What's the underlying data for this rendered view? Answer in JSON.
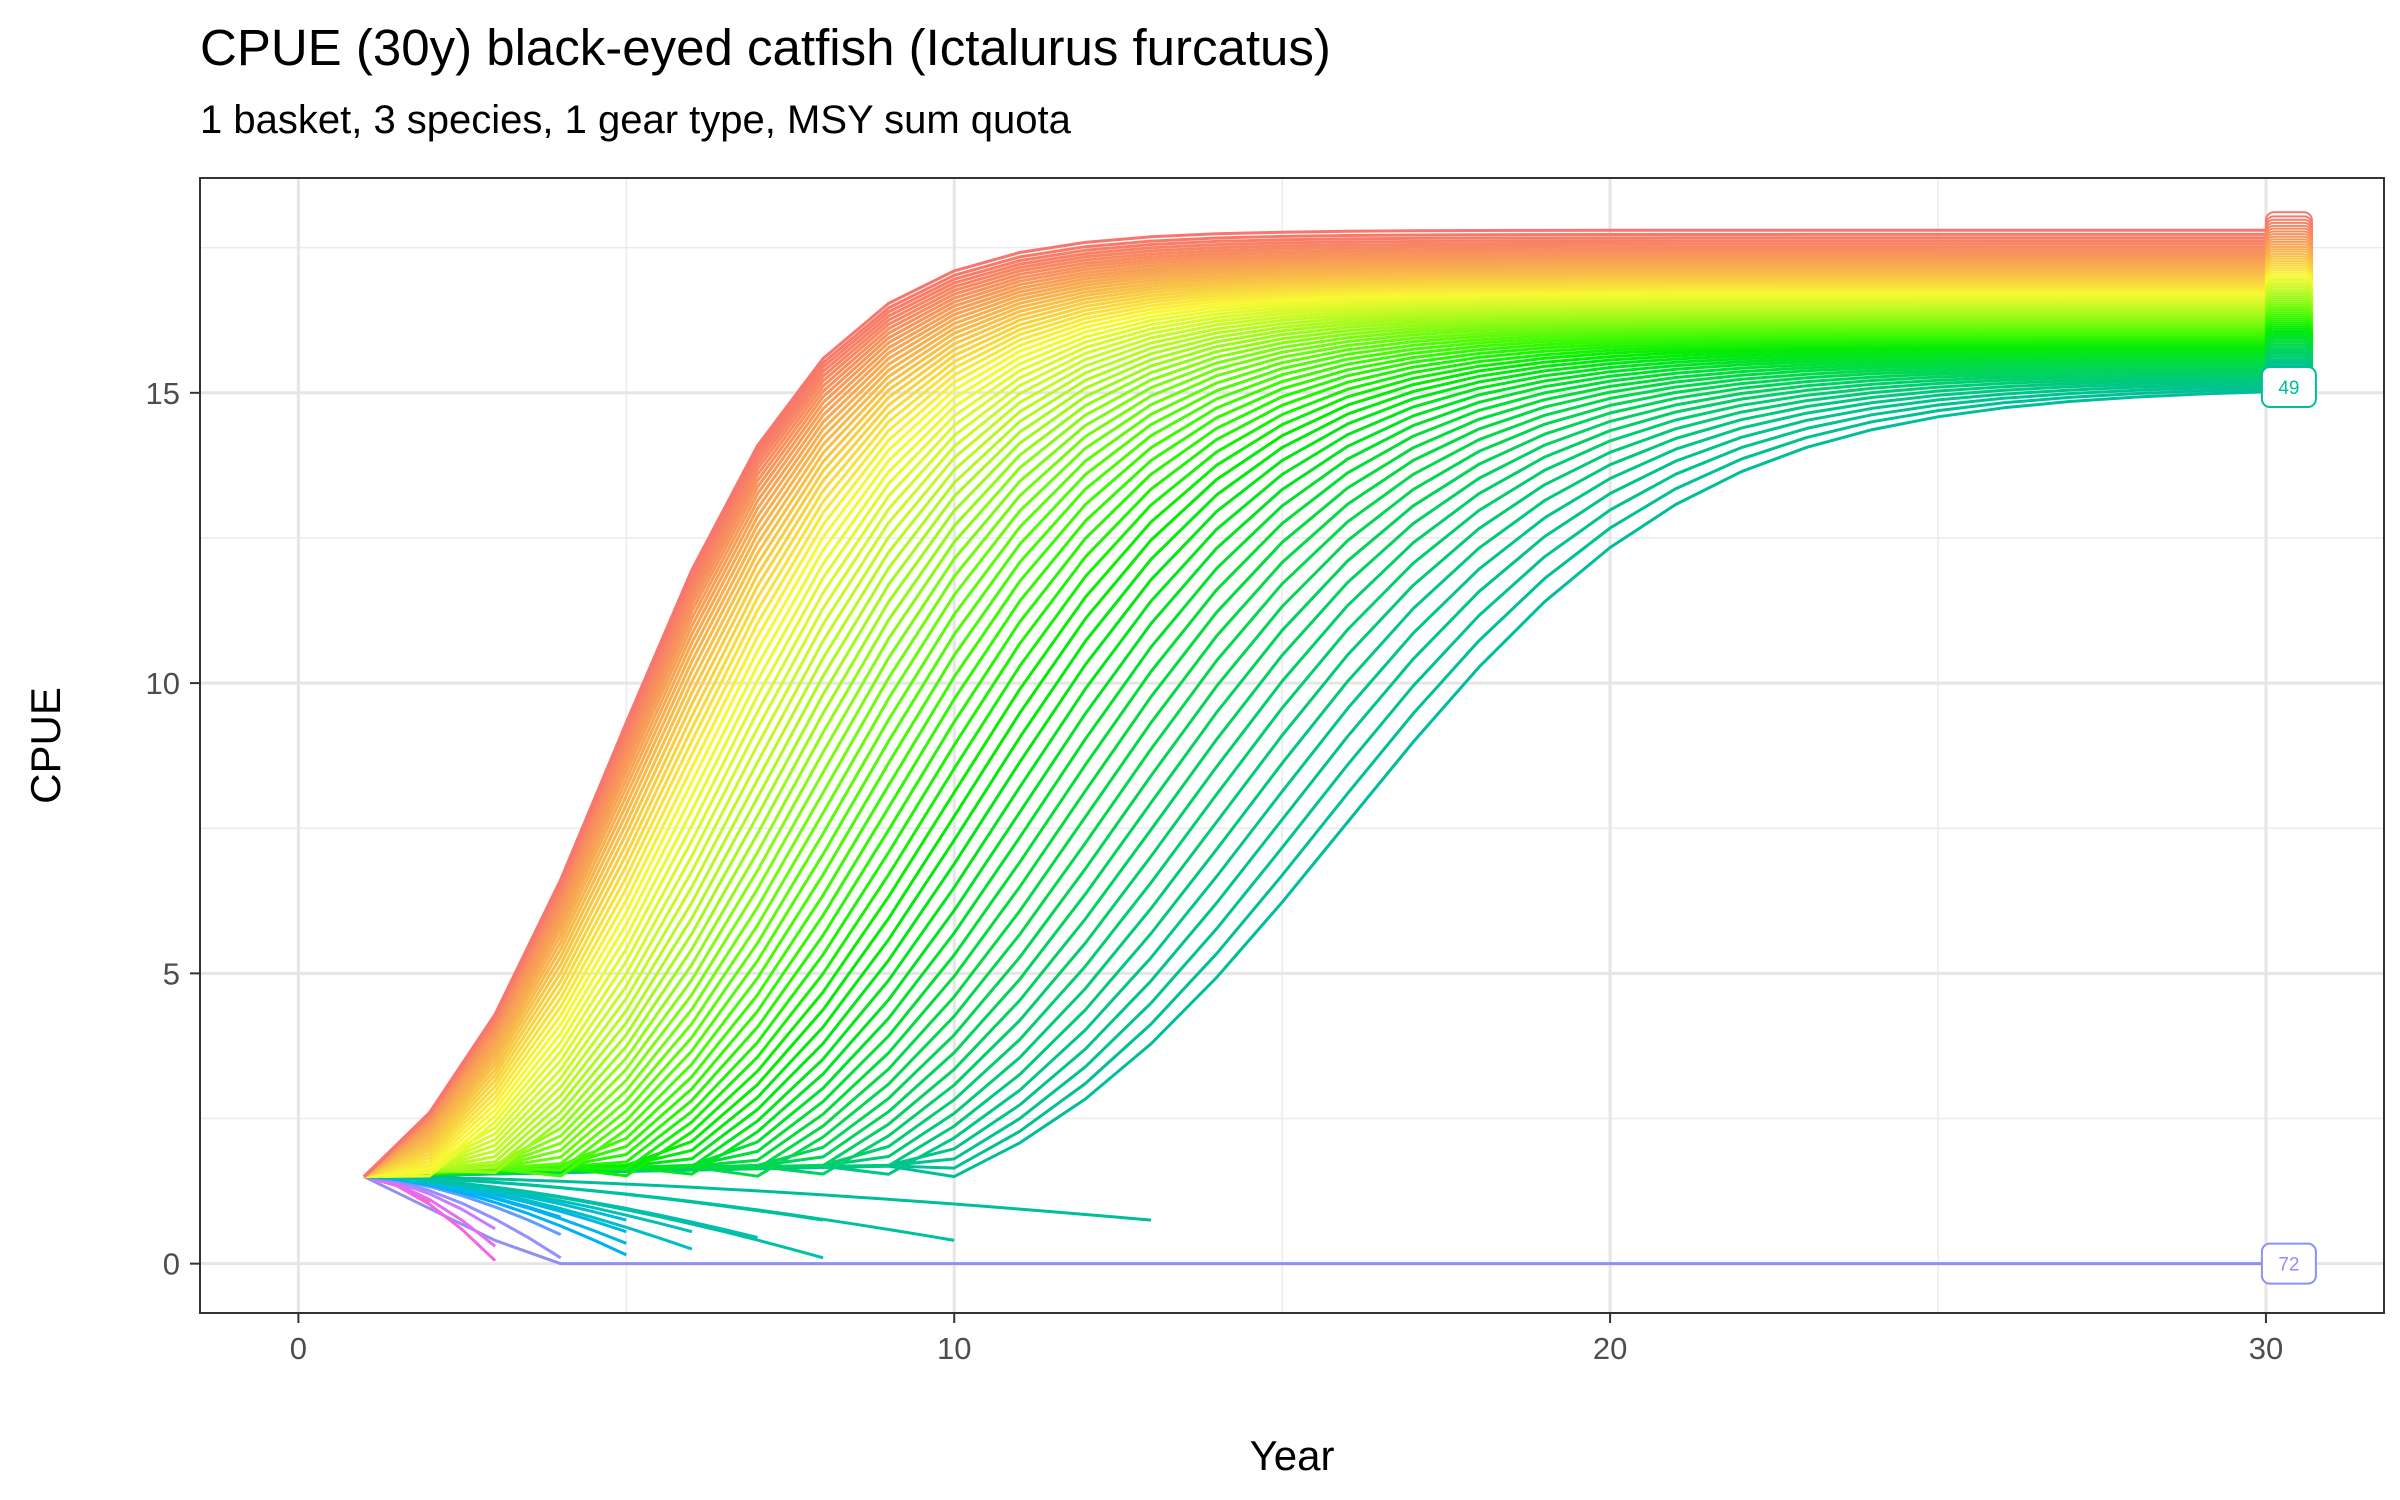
{
  "chart_data": {
    "type": "line",
    "title": "CPUE (30y) black-eyed catfish (Ictalurus furcatus)",
    "subtitle": "1 basket, 3 species, 1 gear type, MSY sum quota",
    "xlabel": "Year",
    "ylabel": "CPUE",
    "xlim": [
      -1.5,
      31.8
    ],
    "ylim": [
      -0.85,
      18.7
    ],
    "xticks": [
      0,
      10,
      20,
      30
    ],
    "yticks": [
      0,
      5,
      10,
      15
    ],
    "grid": true,
    "legend": "none",
    "start": {
      "x": 1,
      "y": 1.5
    },
    "recovering_family": {
      "count": 72,
      "plateau_top": 17.8,
      "plateau_bottom": 15.1,
      "color_start": "#F8766D",
      "color_end": "#00BE9A",
      "note": "series recover from y=1.5 at year 1 to a plateau; later-starting series plateau lower"
    },
    "collapsing_series": [
      {
        "x_end": 2,
        "y_end": 1.05,
        "color": "#FF66A8"
      },
      {
        "x_end": 3,
        "y_end": 0.05,
        "color": "#F564E3"
      },
      {
        "x_end": 3,
        "y_end": 0.3,
        "color": "#E76BF3"
      },
      {
        "x_end": 3,
        "y_end": 0.6,
        "color": "#C77CFF"
      },
      {
        "x_end": 4,
        "y_end": 0.1,
        "color": "#9590FF"
      },
      {
        "x_end": 4,
        "y_end": 0.5,
        "color": "#619CFF"
      },
      {
        "x_end": 4,
        "y_end": 0.8,
        "color": "#00A9FF"
      },
      {
        "x_end": 5,
        "y_end": 0.15,
        "color": "#00B0F6"
      },
      {
        "x_end": 5,
        "y_end": 0.35,
        "color": "#00B5EE"
      },
      {
        "x_end": 5,
        "y_end": 0.55,
        "color": "#00B8E7"
      },
      {
        "x_end": 5,
        "y_end": 0.75,
        "color": "#00BCD8"
      },
      {
        "x_end": 6,
        "y_end": 0.25,
        "color": "#00BFC4"
      },
      {
        "x_end": 6,
        "y_end": 0.55,
        "color": "#00C0B8"
      },
      {
        "x_end": 7,
        "y_end": 0.45,
        "color": "#00C0AF"
      },
      {
        "x_end": 8,
        "y_end": 0.1,
        "color": "#00C1A7"
      },
      {
        "x_end": 8,
        "y_end": 0.75,
        "color": "#00C1A3"
      },
      {
        "x_end": 10,
        "y_end": 0.4,
        "color": "#00C19F"
      },
      {
        "x_end": 13,
        "y_end": 0.75,
        "color": "#00BE9A"
      }
    ],
    "flat_series": {
      "label": "72",
      "x": [
        4,
        30
      ],
      "y": 0,
      "color": "#8F91F2"
    },
    "lowest_recovery_series": {
      "label": "49",
      "end_y": 15.1,
      "color": "#00BE9A"
    },
    "end_labels": [
      {
        "text": "49",
        "x": 30.35,
        "y": 15.1,
        "color": "#00BE9A"
      },
      {
        "text": "72",
        "x": 30.35,
        "y": 0,
        "color": "#8F91F2"
      }
    ]
  }
}
